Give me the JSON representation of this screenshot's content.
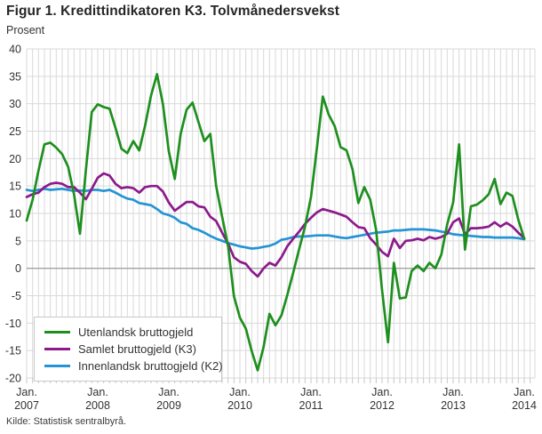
{
  "header": {
    "title": "Figur 1. Kredittindikatoren K3. Tolvmånedersvekst",
    "unit_label": "Prosent"
  },
  "footer": {
    "source": "Kilde: Statistisk sentralbyrå."
  },
  "colors": {
    "grid": "#d9d9d9",
    "zero_line": "#a3a3a3",
    "axis_tick": "#c7c7c7",
    "axis_text": "#333333"
  },
  "chart_data": {
    "type": "line",
    "title": "Figur 1. Kredittindikatoren K3. Tolvmånedersvekst",
    "ylabel": "Prosent",
    "xlabel": "",
    "ylim": [
      -20,
      40
    ],
    "y_tick_step": 5,
    "grid": true,
    "legend_position": "bottom-left",
    "x_start": "2007-01",
    "x_end": "2014-01",
    "frequency": "monthly",
    "x_ticks": [
      {
        "month": "Jan.",
        "year": "2007"
      },
      {
        "month": "Jan.",
        "year": "2008"
      },
      {
        "month": "Jan.",
        "year": "2009"
      },
      {
        "month": "Jan.",
        "year": "2010"
      },
      {
        "month": "Jan.",
        "year": "2011"
      },
      {
        "month": "Jan.",
        "year": "2012"
      },
      {
        "month": "Jan.",
        "year": "2013"
      },
      {
        "month": "Jan.",
        "year": "2014"
      }
    ],
    "series": [
      {
        "name": "Utenlandsk bruttogjeld",
        "color": "#1e8f1e",
        "values": [
          8.7,
          12.5,
          17.8,
          22.6,
          22.9,
          22.0,
          20.8,
          18.5,
          13.5,
          6.3,
          18.0,
          28.5,
          29.9,
          29.4,
          29.1,
          25.6,
          21.8,
          21.0,
          23.2,
          21.5,
          26.0,
          31.5,
          35.4,
          30.0,
          21.3,
          16.3,
          24.5,
          28.9,
          30.2,
          26.7,
          23.2,
          24.5,
          15.0,
          9.4,
          4.0,
          -5.1,
          -9.0,
          -11.0,
          -15.1,
          -18.6,
          -14.3,
          -8.3,
          -10.4,
          -8.6,
          -4.9,
          -0.8,
          3.5,
          7.6,
          13.0,
          22.0,
          31.3,
          28.0,
          25.9,
          22.1,
          21.5,
          18.1,
          11.9,
          14.8,
          12.5,
          7.0,
          -4.0,
          -13.5,
          1.0,
          -5.5,
          -5.3,
          -0.5,
          0.5,
          -0.5,
          1.0,
          0.0,
          2.5,
          8.0,
          12.0,
          22.6,
          3.4,
          11.3,
          11.6,
          12.4,
          13.5,
          16.3,
          11.7,
          13.8,
          13.2,
          8.9,
          5.4
        ]
      },
      {
        "name": "Samlet bruttogjeld (K3)",
        "color": "#8c1a8c",
        "values": [
          13.0,
          13.5,
          13.8,
          14.8,
          15.4,
          15.6,
          15.4,
          14.8,
          14.8,
          13.8,
          12.6,
          14.5,
          16.5,
          17.3,
          16.9,
          15.4,
          14.6,
          14.8,
          14.6,
          13.8,
          14.8,
          15.0,
          15.0,
          14.0,
          12.0,
          10.5,
          11.3,
          12.1,
          12.1,
          11.3,
          11.1,
          9.4,
          8.6,
          6.5,
          4.5,
          2.0,
          1.2,
          0.8,
          -0.5,
          -1.5,
          0.0,
          1.0,
          0.5,
          2.0,
          4.0,
          5.4,
          6.7,
          8.1,
          9.2,
          10.2,
          10.8,
          10.5,
          10.2,
          9.8,
          9.4,
          8.4,
          7.5,
          7.3,
          5.5,
          4.3,
          3.0,
          2.2,
          5.4,
          3.7,
          5.0,
          5.1,
          5.4,
          5.1,
          5.7,
          5.4,
          5.7,
          6.3,
          8.4,
          9.1,
          6.2,
          7.3,
          7.3,
          7.4,
          7.6,
          8.4,
          7.6,
          8.3,
          7.6,
          6.5,
          5.5
        ]
      },
      {
        "name": "Innenlandsk bruttogjeld (K2)",
        "color": "#2494d4",
        "values": [
          14.3,
          14.1,
          14.3,
          14.5,
          14.3,
          14.4,
          14.5,
          14.3,
          14.1,
          14.2,
          14.1,
          14.3,
          14.3,
          14.1,
          14.3,
          13.8,
          13.2,
          12.7,
          12.5,
          11.9,
          11.7,
          11.5,
          10.8,
          10.0,
          9.7,
          9.2,
          8.4,
          8.1,
          7.3,
          7.0,
          6.5,
          5.9,
          5.4,
          5.0,
          4.6,
          4.3,
          4.0,
          3.8,
          3.6,
          3.7,
          3.9,
          4.1,
          4.5,
          5.2,
          5.4,
          5.7,
          5.8,
          5.8,
          5.9,
          6.0,
          6.0,
          6.0,
          5.8,
          5.6,
          5.5,
          5.7,
          5.9,
          6.1,
          6.3,
          6.5,
          6.6,
          6.7,
          6.9,
          6.9,
          7.0,
          7.1,
          7.1,
          7.1,
          7.0,
          6.9,
          6.7,
          6.5,
          6.2,
          6.1,
          6.0,
          5.9,
          5.8,
          5.7,
          5.7,
          5.6,
          5.6,
          5.6,
          5.6,
          5.5,
          5.3
        ]
      }
    ]
  }
}
